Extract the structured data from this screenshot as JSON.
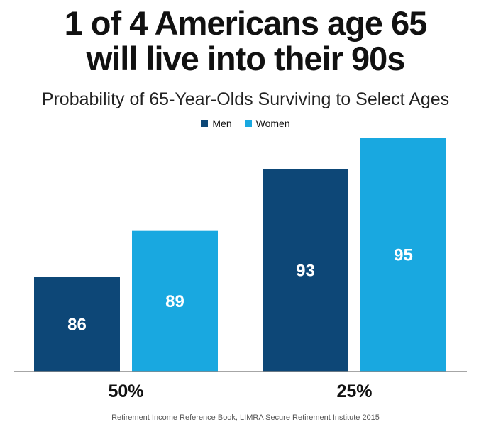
{
  "title_line1": "1 of 4 Americans age 65",
  "title_line2": "will live into their 90s",
  "subtitle": "Probability of 65-Year-Olds Surviving to Select Ages",
  "source": "Retirement Income Reference Book, LIMRA Secure Retirement Institute 2015",
  "colors": {
    "men": "#0d4777",
    "women": "#19a8e0"
  },
  "chart_data": {
    "type": "bar",
    "title": "1 of 4 Americans age 65 will live into their 90s",
    "subtitle": "Probability of 65-Year-Olds Surviving to Select Ages",
    "categories": [
      "50%",
      "25%"
    ],
    "series": [
      {
        "name": "Men",
        "values": [
          86,
          93
        ]
      },
      {
        "name": "Women",
        "values": [
          89,
          95
        ]
      }
    ],
    "ylim": [
      0,
      100
    ],
    "grid": false,
    "legend": "top-center",
    "data_labels": true
  }
}
